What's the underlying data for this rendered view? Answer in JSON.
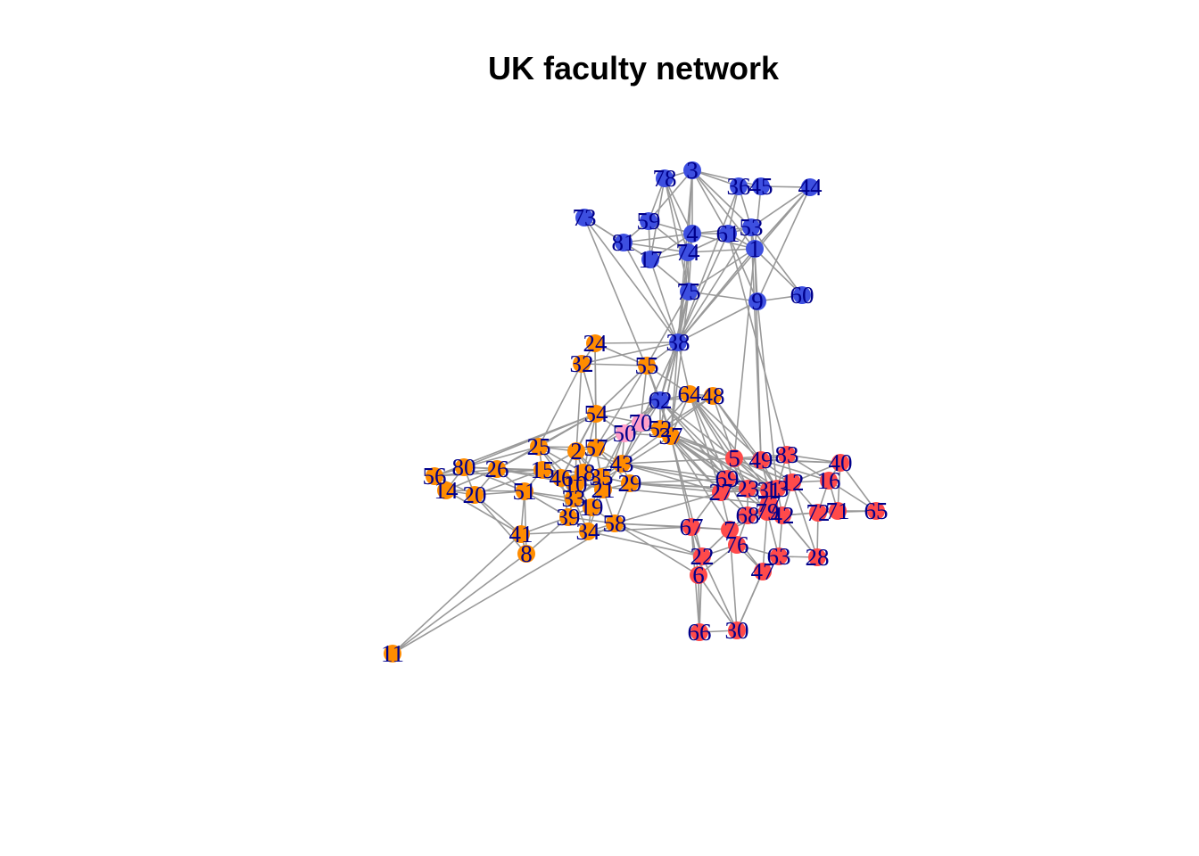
{
  "title": "UK faculty network",
  "colors": {
    "edge": "#999999",
    "label": "#00008b",
    "group_1": "#ff8c00",
    "group_2": "#ff4a4a",
    "group_3": "#3d4fe0",
    "group_4": "#ff9ec8"
  },
  "nodes": [
    {
      "id": "1",
      "group": 3
    },
    {
      "id": "3",
      "group": 3
    },
    {
      "id": "4",
      "group": 3
    },
    {
      "id": "9",
      "group": 3
    },
    {
      "id": "17",
      "group": 3
    },
    {
      "id": "36",
      "group": 3
    },
    {
      "id": "38",
      "group": 3
    },
    {
      "id": "44",
      "group": 3
    },
    {
      "id": "45",
      "group": 3
    },
    {
      "id": "53",
      "group": 3
    },
    {
      "id": "59",
      "group": 3
    },
    {
      "id": "60",
      "group": 3
    },
    {
      "id": "61",
      "group": 3
    },
    {
      "id": "62",
      "group": 3
    },
    {
      "id": "73",
      "group": 3
    },
    {
      "id": "74",
      "group": 3
    },
    {
      "id": "75",
      "group": 3
    },
    {
      "id": "78",
      "group": 3
    },
    {
      "id": "81",
      "group": 3
    },
    {
      "id": "2",
      "group": 1
    },
    {
      "id": "8",
      "group": 1
    },
    {
      "id": "10",
      "group": 1
    },
    {
      "id": "11",
      "group": 1
    },
    {
      "id": "14",
      "group": 1
    },
    {
      "id": "15",
      "group": 1
    },
    {
      "id": "18",
      "group": 1
    },
    {
      "id": "19",
      "group": 1
    },
    {
      "id": "20",
      "group": 1
    },
    {
      "id": "21",
      "group": 1
    },
    {
      "id": "24",
      "group": 1
    },
    {
      "id": "25",
      "group": 1
    },
    {
      "id": "26",
      "group": 1
    },
    {
      "id": "29",
      "group": 1
    },
    {
      "id": "32",
      "group": 1
    },
    {
      "id": "34",
      "group": 1
    },
    {
      "id": "35",
      "group": 1
    },
    {
      "id": "37",
      "group": 1
    },
    {
      "id": "39",
      "group": 1
    },
    {
      "id": "41",
      "group": 1
    },
    {
      "id": "43",
      "group": 1
    },
    {
      "id": "46",
      "group": 1
    },
    {
      "id": "48",
      "group": 1
    },
    {
      "id": "51",
      "group": 1
    },
    {
      "id": "52",
      "group": 1
    },
    {
      "id": "54",
      "group": 1
    },
    {
      "id": "55",
      "group": 1
    },
    {
      "id": "56",
      "group": 1
    },
    {
      "id": "57",
      "group": 1
    },
    {
      "id": "58",
      "group": 1
    },
    {
      "id": "64",
      "group": 1
    },
    {
      "id": "80",
      "group": 1
    },
    {
      "id": "33",
      "group": 1
    },
    {
      "id": "5",
      "group": 2
    },
    {
      "id": "6",
      "group": 2
    },
    {
      "id": "7",
      "group": 2
    },
    {
      "id": "12",
      "group": 2
    },
    {
      "id": "13",
      "group": 2
    },
    {
      "id": "16",
      "group": 2
    },
    {
      "id": "22",
      "group": 2
    },
    {
      "id": "23",
      "group": 2
    },
    {
      "id": "27",
      "group": 2
    },
    {
      "id": "28",
      "group": 2
    },
    {
      "id": "30",
      "group": 2
    },
    {
      "id": "31",
      "group": 2
    },
    {
      "id": "40",
      "group": 2
    },
    {
      "id": "42",
      "group": 2
    },
    {
      "id": "47",
      "group": 2
    },
    {
      "id": "49",
      "group": 2
    },
    {
      "id": "63",
      "group": 2
    },
    {
      "id": "65",
      "group": 2
    },
    {
      "id": "66",
      "group": 2
    },
    {
      "id": "67",
      "group": 2
    },
    {
      "id": "68",
      "group": 2
    },
    {
      "id": "69",
      "group": 2
    },
    {
      "id": "71",
      "group": 2
    },
    {
      "id": "72",
      "group": 2
    },
    {
      "id": "76",
      "group": 2
    },
    {
      "id": "77",
      "group": 2
    },
    {
      "id": "79",
      "group": 2
    },
    {
      "id": "83",
      "group": 2
    },
    {
      "id": "50",
      "group": 4
    },
    {
      "id": "70",
      "group": 4
    }
  ],
  "edges": [
    [
      "3",
      "78"
    ],
    [
      "3",
      "36"
    ],
    [
      "3",
      "45"
    ],
    [
      "3",
      "4"
    ],
    [
      "3",
      "74"
    ],
    [
      "3",
      "53"
    ],
    [
      "3",
      "1"
    ],
    [
      "3",
      "59"
    ],
    [
      "3",
      "61"
    ],
    [
      "36",
      "45"
    ],
    [
      "45",
      "44"
    ],
    [
      "36",
      "53"
    ],
    [
      "45",
      "1"
    ],
    [
      "44",
      "53"
    ],
    [
      "44",
      "1"
    ],
    [
      "44",
      "9"
    ],
    [
      "36",
      "61"
    ],
    [
      "78",
      "59"
    ],
    [
      "78",
      "4"
    ],
    [
      "78",
      "74"
    ],
    [
      "78",
      "17"
    ],
    [
      "78",
      "75"
    ],
    [
      "73",
      "81"
    ],
    [
      "73",
      "38"
    ],
    [
      "73",
      "62"
    ],
    [
      "73",
      "17"
    ],
    [
      "59",
      "81"
    ],
    [
      "59",
      "4"
    ],
    [
      "59",
      "17"
    ],
    [
      "59",
      "74"
    ],
    [
      "81",
      "17"
    ],
    [
      "81",
      "74"
    ],
    [
      "81",
      "4"
    ],
    [
      "81",
      "38"
    ],
    [
      "4",
      "61"
    ],
    [
      "4",
      "53"
    ],
    [
      "4",
      "74"
    ],
    [
      "4",
      "1"
    ],
    [
      "4",
      "75"
    ],
    [
      "4",
      "17"
    ],
    [
      "61",
      "53"
    ],
    [
      "61",
      "1"
    ],
    [
      "53",
      "1"
    ],
    [
      "17",
      "74"
    ],
    [
      "17",
      "75"
    ],
    [
      "17",
      "38"
    ],
    [
      "74",
      "75"
    ],
    [
      "74",
      "38"
    ],
    [
      "74",
      "1"
    ],
    [
      "74",
      "61"
    ],
    [
      "1",
      "9"
    ],
    [
      "9",
      "60"
    ],
    [
      "1",
      "60"
    ],
    [
      "53",
      "60"
    ],
    [
      "61",
      "9"
    ],
    [
      "9",
      "13"
    ],
    [
      "75",
      "38"
    ],
    [
      "75",
      "55"
    ],
    [
      "75",
      "62"
    ],
    [
      "75",
      "37"
    ],
    [
      "75",
      "52"
    ],
    [
      "75",
      "1"
    ],
    [
      "75",
      "9"
    ],
    [
      "38",
      "55"
    ],
    [
      "38",
      "62"
    ],
    [
      "38",
      "64"
    ],
    [
      "38",
      "37"
    ],
    [
      "38",
      "52"
    ],
    [
      "38",
      "70"
    ],
    [
      "38",
      "24"
    ],
    [
      "38",
      "32"
    ],
    [
      "38",
      "1"
    ],
    [
      "38",
      "9"
    ],
    [
      "38",
      "53"
    ],
    [
      "38",
      "61"
    ],
    [
      "38",
      "4"
    ],
    [
      "38",
      "3"
    ],
    [
      "38",
      "36"
    ],
    [
      "38",
      "44"
    ],
    [
      "55",
      "24"
    ],
    [
      "55",
      "32"
    ],
    [
      "55",
      "62"
    ],
    [
      "55",
      "64"
    ],
    [
      "55",
      "54"
    ],
    [
      "55",
      "37"
    ],
    [
      "55",
      "57"
    ],
    [
      "55",
      "70"
    ],
    [
      "24",
      "32"
    ],
    [
      "24",
      "54"
    ],
    [
      "32",
      "54"
    ],
    [
      "32",
      "2"
    ],
    [
      "32",
      "25"
    ],
    [
      "24",
      "57"
    ],
    [
      "62",
      "64"
    ],
    [
      "62",
      "48"
    ],
    [
      "62",
      "70"
    ],
    [
      "62",
      "52"
    ],
    [
      "62",
      "37"
    ],
    [
      "62",
      "50"
    ],
    [
      "62",
      "54"
    ],
    [
      "62",
      "57"
    ],
    [
      "62",
      "43"
    ],
    [
      "64",
      "48"
    ],
    [
      "64",
      "37"
    ],
    [
      "64",
      "52"
    ],
    [
      "64",
      "5"
    ],
    [
      "64",
      "69"
    ],
    [
      "64",
      "27"
    ],
    [
      "64",
      "23"
    ],
    [
      "64",
      "31"
    ],
    [
      "64",
      "49"
    ],
    [
      "48",
      "52"
    ],
    [
      "48",
      "5"
    ],
    [
      "48",
      "33"
    ],
    [
      "48",
      "49"
    ],
    [
      "48",
      "13"
    ],
    [
      "54",
      "57"
    ],
    [
      "54",
      "2"
    ],
    [
      "54",
      "25"
    ],
    [
      "54",
      "18"
    ],
    [
      "54",
      "46"
    ],
    [
      "54",
      "70"
    ],
    [
      "54",
      "50"
    ],
    [
      "54",
      "56"
    ],
    [
      "54",
      "80"
    ],
    [
      "54",
      "26"
    ],
    [
      "70",
      "50"
    ],
    [
      "70",
      "52"
    ],
    [
      "70",
      "37"
    ],
    [
      "70",
      "43"
    ],
    [
      "70",
      "57"
    ],
    [
      "50",
      "52"
    ],
    [
      "50",
      "37"
    ],
    [
      "50",
      "43"
    ],
    [
      "50",
      "35"
    ],
    [
      "50",
      "21"
    ],
    [
      "52",
      "37"
    ],
    [
      "52",
      "5"
    ],
    [
      "52",
      "69"
    ],
    [
      "52",
      "27"
    ],
    [
      "52",
      "23"
    ],
    [
      "52",
      "31"
    ],
    [
      "52",
      "77"
    ],
    [
      "52",
      "12"
    ],
    [
      "37",
      "5"
    ],
    [
      "37",
      "69"
    ],
    [
      "37",
      "27"
    ],
    [
      "37",
      "23"
    ],
    [
      "37",
      "67"
    ],
    [
      "37",
      "22"
    ],
    [
      "37",
      "7"
    ],
    [
      "37",
      "79"
    ],
    [
      "37",
      "13"
    ],
    [
      "37",
      "33"
    ],
    [
      "25",
      "2"
    ],
    [
      "25",
      "57"
    ],
    [
      "25",
      "15"
    ],
    [
      "25",
      "18"
    ],
    [
      "25",
      "26"
    ],
    [
      "25",
      "80"
    ],
    [
      "25",
      "46"
    ],
    [
      "25",
      "10"
    ],
    [
      "2",
      "57"
    ],
    [
      "2",
      "18"
    ],
    [
      "2",
      "35"
    ],
    [
      "2",
      "43"
    ],
    [
      "2",
      "15"
    ],
    [
      "2",
      "46"
    ],
    [
      "2",
      "10"
    ],
    [
      "2",
      "21"
    ],
    [
      "57",
      "43"
    ],
    [
      "57",
      "18"
    ],
    [
      "57",
      "35"
    ],
    [
      "57",
      "21"
    ],
    [
      "57",
      "29"
    ],
    [
      "56",
      "80"
    ],
    [
      "56",
      "14"
    ],
    [
      "56",
      "20"
    ],
    [
      "56",
      "26"
    ],
    [
      "56",
      "15"
    ],
    [
      "80",
      "26"
    ],
    [
      "80",
      "14"
    ],
    [
      "80",
      "20"
    ],
    [
      "80",
      "15"
    ],
    [
      "80",
      "51"
    ],
    [
      "14",
      "20"
    ],
    [
      "14",
      "51"
    ],
    [
      "14",
      "26"
    ],
    [
      "14",
      "41"
    ],
    [
      "20",
      "51"
    ],
    [
      "20",
      "26"
    ],
    [
      "20",
      "15"
    ],
    [
      "20",
      "41"
    ],
    [
      "20",
      "8"
    ],
    [
      "26",
      "15"
    ],
    [
      "26",
      "51"
    ],
    [
      "26",
      "46"
    ],
    [
      "26",
      "18"
    ],
    [
      "26",
      "10"
    ],
    [
      "15",
      "46"
    ],
    [
      "15",
      "10"
    ],
    [
      "15",
      "18"
    ],
    [
      "15",
      "51"
    ],
    [
      "15",
      "33"
    ],
    [
      "15",
      "21"
    ],
    [
      "46",
      "10"
    ],
    [
      "46",
      "18"
    ],
    [
      "46",
      "33"
    ],
    [
      "46",
      "35"
    ],
    [
      "46",
      "21"
    ],
    [
      "46",
      "39"
    ],
    [
      "10",
      "18"
    ],
    [
      "10",
      "33"
    ],
    [
      "10",
      "35"
    ],
    [
      "10",
      "19"
    ],
    [
      "18",
      "35"
    ],
    [
      "18",
      "21"
    ],
    [
      "18",
      "29"
    ],
    [
      "18",
      "33"
    ],
    [
      "18",
      "43"
    ],
    [
      "35",
      "43"
    ],
    [
      "35",
      "29"
    ],
    [
      "35",
      "21"
    ],
    [
      "35",
      "19"
    ],
    [
      "21",
      "43"
    ],
    [
      "21",
      "29"
    ],
    [
      "21",
      "19"
    ],
    [
      "21",
      "58"
    ],
    [
      "21",
      "34"
    ],
    [
      "43",
      "29"
    ],
    [
      "43",
      "69"
    ],
    [
      "43",
      "27"
    ],
    [
      "43",
      "5"
    ],
    [
      "43",
      "23"
    ],
    [
      "29",
      "27"
    ],
    [
      "29",
      "69"
    ],
    [
      "29",
      "23"
    ],
    [
      "29",
      "31"
    ],
    [
      "29",
      "58"
    ],
    [
      "51",
      "33"
    ],
    [
      "51",
      "39"
    ],
    [
      "51",
      "41"
    ],
    [
      "51",
      "8"
    ],
    [
      "51",
      "19"
    ],
    [
      "33",
      "39"
    ],
    [
      "33",
      "19"
    ],
    [
      "33",
      "34"
    ],
    [
      "39",
      "19"
    ],
    [
      "39",
      "34"
    ],
    [
      "39",
      "58"
    ],
    [
      "39",
      "41"
    ],
    [
      "39",
      "8"
    ],
    [
      "19",
      "34"
    ],
    [
      "19",
      "58"
    ],
    [
      "34",
      "58"
    ],
    [
      "41",
      "8"
    ],
    [
      "41",
      "34"
    ],
    [
      "11",
      "41"
    ],
    [
      "11",
      "58"
    ],
    [
      "11",
      "8"
    ],
    [
      "58",
      "67"
    ],
    [
      "58",
      "7"
    ],
    [
      "58",
      "27"
    ],
    [
      "58",
      "22"
    ],
    [
      "34",
      "67"
    ],
    [
      "34",
      "22"
    ],
    [
      "58",
      "6"
    ],
    [
      "5",
      "49"
    ],
    [
      "5",
      "83"
    ],
    [
      "5",
      "69"
    ],
    [
      "5",
      "27"
    ],
    [
      "5",
      "23"
    ],
    [
      "5",
      "31"
    ],
    [
      "5",
      "13"
    ],
    [
      "5",
      "12"
    ],
    [
      "5",
      "40"
    ],
    [
      "49",
      "83"
    ],
    [
      "49",
      "40"
    ],
    [
      "49",
      "12"
    ],
    [
      "49",
      "13"
    ],
    [
      "49",
      "31"
    ],
    [
      "49",
      "16"
    ],
    [
      "83",
      "40"
    ],
    [
      "83",
      "12"
    ],
    [
      "83",
      "16"
    ],
    [
      "83",
      "13"
    ],
    [
      "40",
      "16"
    ],
    [
      "40",
      "12"
    ],
    [
      "40",
      "71"
    ],
    [
      "40",
      "65"
    ],
    [
      "16",
      "12"
    ],
    [
      "16",
      "71"
    ],
    [
      "16",
      "72"
    ],
    [
      "16",
      "65"
    ],
    [
      "12",
      "13"
    ],
    [
      "12",
      "31"
    ],
    [
      "12",
      "42"
    ],
    [
      "12",
      "72"
    ],
    [
      "69",
      "27"
    ],
    [
      "69",
      "23"
    ],
    [
      "69",
      "31"
    ],
    [
      "69",
      "68"
    ],
    [
      "69",
      "67"
    ],
    [
      "27",
      "23"
    ],
    [
      "27",
      "31"
    ],
    [
      "27",
      "68"
    ],
    [
      "27",
      "7"
    ],
    [
      "23",
      "31"
    ],
    [
      "23",
      "13"
    ],
    [
      "23",
      "77"
    ],
    [
      "23",
      "79"
    ],
    [
      "23",
      "68"
    ],
    [
      "31",
      "13"
    ],
    [
      "31",
      "77"
    ],
    [
      "31",
      "79"
    ],
    [
      "31",
      "42"
    ],
    [
      "13",
      "77"
    ],
    [
      "13",
      "42"
    ],
    [
      "77",
      "79"
    ],
    [
      "77",
      "68"
    ],
    [
      "77",
      "42"
    ],
    [
      "77",
      "10"
    ],
    [
      "79",
      "68"
    ],
    [
      "79",
      "42"
    ],
    [
      "79",
      "7"
    ],
    [
      "68",
      "7"
    ],
    [
      "68",
      "76"
    ],
    [
      "68",
      "42"
    ],
    [
      "42",
      "72"
    ],
    [
      "42",
      "71"
    ],
    [
      "42",
      "28"
    ],
    [
      "72",
      "71"
    ],
    [
      "71",
      "65"
    ],
    [
      "72",
      "65"
    ],
    [
      "72",
      "28"
    ],
    [
      "67",
      "7"
    ],
    [
      "67",
      "22"
    ],
    [
      "67",
      "6"
    ],
    [
      "7",
      "76"
    ],
    [
      "7",
      "22"
    ],
    [
      "7",
      "47"
    ],
    [
      "76",
      "22"
    ],
    [
      "76",
      "47"
    ],
    [
      "76",
      "63"
    ],
    [
      "76",
      "6"
    ],
    [
      "63",
      "47"
    ],
    [
      "63",
      "28"
    ],
    [
      "63",
      "79"
    ],
    [
      "63",
      "42"
    ],
    [
      "47",
      "79"
    ],
    [
      "47",
      "30"
    ],
    [
      "28",
      "42"
    ],
    [
      "28",
      "12"
    ],
    [
      "22",
      "6"
    ],
    [
      "22",
      "66"
    ],
    [
      "22",
      "30"
    ],
    [
      "6",
      "66"
    ],
    [
      "6",
      "30"
    ],
    [
      "66",
      "30"
    ],
    [
      "30",
      "47"
    ],
    [
      "30",
      "7"
    ],
    [
      "66",
      "67"
    ],
    [
      "62",
      "5"
    ],
    [
      "62",
      "69"
    ],
    [
      "62",
      "23"
    ],
    [
      "1",
      "5"
    ],
    [
      "1",
      "49"
    ],
    [
      "53",
      "49"
    ],
    [
      "61",
      "83"
    ]
  ]
}
